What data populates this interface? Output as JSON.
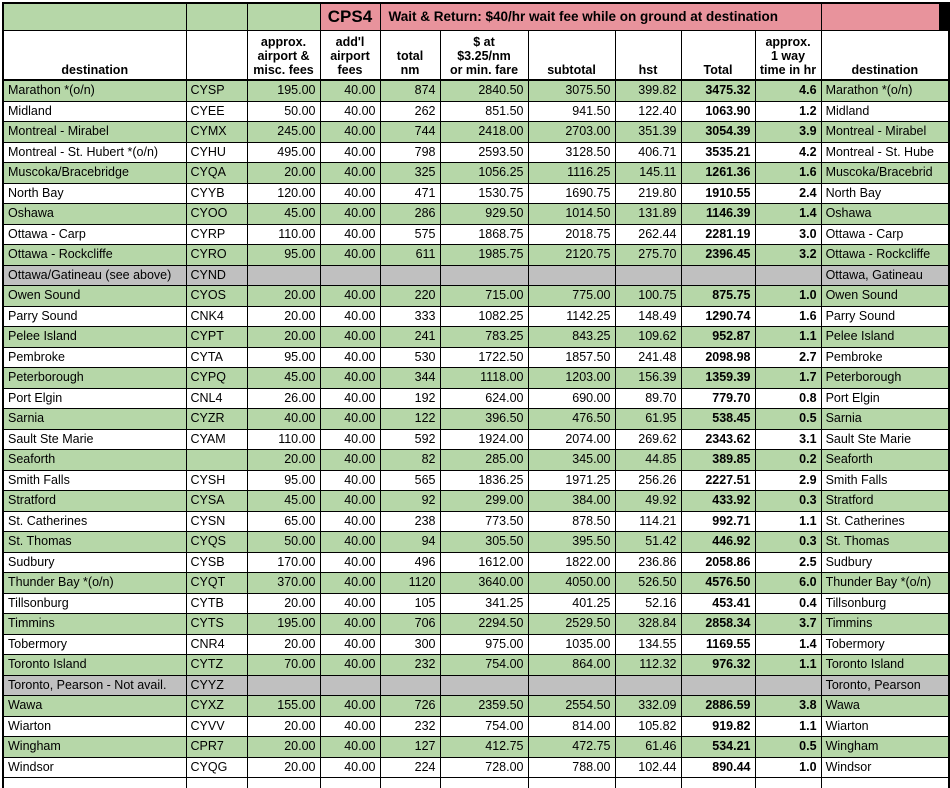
{
  "banner": {
    "code": "CPS4",
    "text": "Wait & Return: $40/hr wait fee while on ground at destination"
  },
  "headers": {
    "destination": "destination",
    "code": "",
    "fees": "approx.\nairport &\nmisc. fees",
    "addl": "add'l\nairport\nfees",
    "nm": "total\nnm",
    "fare": "$ at\n$3.25/nm\nor min. fare",
    "subtotal": "subtotal",
    "hst": "hst",
    "total": "Total",
    "time": "approx.\n1 way\ntime in hr",
    "destination_right": "destination"
  },
  "colors": {
    "green": "#b6d7a8",
    "pink": "#e8939c",
    "gray": "#c0c0c0"
  },
  "rows": [
    {
      "dest": "Marathon *(o/n)",
      "code": "CYSP",
      "fees": "195.00",
      "addl": "40.00",
      "nm": "874",
      "fare": "2840.50",
      "subtotal": "3075.50",
      "hst": "399.82",
      "total": "3475.32",
      "time": "4.6",
      "dest2": "Marathon *(o/n)",
      "shade": "g"
    },
    {
      "dest": "Midland",
      "code": "CYEE",
      "fees": "50.00",
      "addl": "40.00",
      "nm": "262",
      "fare": "851.50",
      "subtotal": "941.50",
      "hst": "122.40",
      "total": "1063.90",
      "time": "1.2",
      "dest2": "Midland",
      "shade": "w"
    },
    {
      "dest": "Montreal - Mirabel",
      "code": "CYMX",
      "fees": "245.00",
      "addl": "40.00",
      "nm": "744",
      "fare": "2418.00",
      "subtotal": "2703.00",
      "hst": "351.39",
      "total": "3054.39",
      "time": "3.9",
      "dest2": "Montreal - Mirabel",
      "shade": "g"
    },
    {
      "dest": "Montreal - St. Hubert *(o/n)",
      "code": "CYHU",
      "fees": "495.00",
      "addl": "40.00",
      "nm": "798",
      "fare": "2593.50",
      "subtotal": "3128.50",
      "hst": "406.71",
      "total": "3535.21",
      "time": "4.2",
      "dest2": "Montreal - St. Hube",
      "shade": "w"
    },
    {
      "dest": "Muscoka/Bracebridge",
      "code": "CYQA",
      "fees": "20.00",
      "addl": "40.00",
      "nm": "325",
      "fare": "1056.25",
      "subtotal": "1116.25",
      "hst": "145.11",
      "total": "1261.36",
      "time": "1.6",
      "dest2": "Muscoka/Bracebrid",
      "shade": "g"
    },
    {
      "dest": "North Bay",
      "code": "CYYB",
      "fees": "120.00",
      "addl": "40.00",
      "nm": "471",
      "fare": "1530.75",
      "subtotal": "1690.75",
      "hst": "219.80",
      "total": "1910.55",
      "time": "2.4",
      "dest2": "North Bay",
      "shade": "w"
    },
    {
      "dest": "Oshawa",
      "code": "CYOO",
      "fees": "45.00",
      "addl": "40.00",
      "nm": "286",
      "fare": "929.50",
      "subtotal": "1014.50",
      "hst": "131.89",
      "total": "1146.39",
      "time": "1.4",
      "dest2": "Oshawa",
      "shade": "g"
    },
    {
      "dest": "Ottawa - Carp",
      "code": "CYRP",
      "fees": "110.00",
      "addl": "40.00",
      "nm": "575",
      "fare": "1868.75",
      "subtotal": "2018.75",
      "hst": "262.44",
      "total": "2281.19",
      "time": "3.0",
      "dest2": "Ottawa - Carp",
      "shade": "w"
    },
    {
      "dest": "Ottawa - Rockcliffe",
      "code": "CYRO",
      "fees": "95.00",
      "addl": "40.00",
      "nm": "611",
      "fare": "1985.75",
      "subtotal": "2120.75",
      "hst": "275.70",
      "total": "2396.45",
      "time": "3.2",
      "dest2": "Ottawa - Rockcliffe",
      "shade": "g"
    },
    {
      "dest": "Ottawa/Gatineau (see above)",
      "code": "CYND",
      "fees": "",
      "addl": "",
      "nm": "",
      "fare": "",
      "subtotal": "",
      "hst": "",
      "total": "",
      "time": "",
      "dest2": "Ottawa, Gatineau",
      "shade": "x"
    },
    {
      "dest": "Owen Sound",
      "code": "CYOS",
      "fees": "20.00",
      "addl": "40.00",
      "nm": "220",
      "fare": "715.00",
      "subtotal": "775.00",
      "hst": "100.75",
      "total": "875.75",
      "time": "1.0",
      "dest2": "Owen Sound",
      "shade": "g"
    },
    {
      "dest": "Parry Sound",
      "code": "CNK4",
      "fees": "20.00",
      "addl": "40.00",
      "nm": "333",
      "fare": "1082.25",
      "subtotal": "1142.25",
      "hst": "148.49",
      "total": "1290.74",
      "time": "1.6",
      "dest2": "Parry Sound",
      "shade": "w"
    },
    {
      "dest": "Pelee Island",
      "code": "CYPT",
      "fees": "20.00",
      "addl": "40.00",
      "nm": "241",
      "fare": "783.25",
      "subtotal": "843.25",
      "hst": "109.62",
      "total": "952.87",
      "time": "1.1",
      "dest2": "Pelee Island",
      "shade": "g"
    },
    {
      "dest": "Pembroke",
      "code": "CYTA",
      "fees": "95.00",
      "addl": "40.00",
      "nm": "530",
      "fare": "1722.50",
      "subtotal": "1857.50",
      "hst": "241.48",
      "total": "2098.98",
      "time": "2.7",
      "dest2": "Pembroke",
      "shade": "w"
    },
    {
      "dest": "Peterborough",
      "code": "CYPQ",
      "fees": "45.00",
      "addl": "40.00",
      "nm": "344",
      "fare": "1118.00",
      "subtotal": "1203.00",
      "hst": "156.39",
      "total": "1359.39",
      "time": "1.7",
      "dest2": "Peterborough",
      "shade": "g"
    },
    {
      "dest": "Port Elgin",
      "code": "CNL4",
      "fees": "26.00",
      "addl": "40.00",
      "nm": "192",
      "fare": "624.00",
      "subtotal": "690.00",
      "hst": "89.70",
      "total": "779.70",
      "time": "0.8",
      "dest2": "Port Elgin",
      "shade": "w"
    },
    {
      "dest": "Sarnia",
      "code": "CYZR",
      "fees": "40.00",
      "addl": "40.00",
      "nm": "122",
      "fare": "396.50",
      "subtotal": "476.50",
      "hst": "61.95",
      "total": "538.45",
      "time": "0.5",
      "dest2": "Sarnia",
      "shade": "g"
    },
    {
      "dest": "Sault Ste Marie",
      "code": "CYAM",
      "fees": "110.00",
      "addl": "40.00",
      "nm": "592",
      "fare": "1924.00",
      "subtotal": "2074.00",
      "hst": "269.62",
      "total": "2343.62",
      "time": "3.1",
      "dest2": "Sault Ste Marie",
      "shade": "w"
    },
    {
      "dest": "Seaforth",
      "code": "",
      "fees": "20.00",
      "addl": "40.00",
      "nm": "82",
      "fare": "285.00",
      "subtotal": "345.00",
      "hst": "44.85",
      "total": "389.85",
      "time": "0.2",
      "dest2": "Seaforth",
      "shade": "g"
    },
    {
      "dest": "Smith Falls",
      "code": "CYSH",
      "fees": "95.00",
      "addl": "40.00",
      "nm": "565",
      "fare": "1836.25",
      "subtotal": "1971.25",
      "hst": "256.26",
      "total": "2227.51",
      "time": "2.9",
      "dest2": "Smith Falls",
      "shade": "w"
    },
    {
      "dest": "Stratford",
      "code": "CYSA",
      "fees": "45.00",
      "addl": "40.00",
      "nm": "92",
      "fare": "299.00",
      "subtotal": "384.00",
      "hst": "49.92",
      "total": "433.92",
      "time": "0.3",
      "dest2": "Stratford",
      "shade": "g"
    },
    {
      "dest": "St. Catherines",
      "code": "CYSN",
      "fees": "65.00",
      "addl": "40.00",
      "nm": "238",
      "fare": "773.50",
      "subtotal": "878.50",
      "hst": "114.21",
      "total": "992.71",
      "time": "1.1",
      "dest2": "St. Catherines",
      "shade": "w"
    },
    {
      "dest": "St. Thomas",
      "code": "CYQS",
      "fees": "50.00",
      "addl": "40.00",
      "nm": "94",
      "fare": "305.50",
      "subtotal": "395.50",
      "hst": "51.42",
      "total": "446.92",
      "time": "0.3",
      "dest2": "St. Thomas",
      "shade": "g"
    },
    {
      "dest": "Sudbury",
      "code": "CYSB",
      "fees": "170.00",
      "addl": "40.00",
      "nm": "496",
      "fare": "1612.00",
      "subtotal": "1822.00",
      "hst": "236.86",
      "total": "2058.86",
      "time": "2.5",
      "dest2": "Sudbury",
      "shade": "w"
    },
    {
      "dest": "Thunder Bay *(o/n)",
      "code": "CYQT",
      "fees": "370.00",
      "addl": "40.00",
      "nm": "1120",
      "fare": "3640.00",
      "subtotal": "4050.00",
      "hst": "526.50",
      "total": "4576.50",
      "time": "6.0",
      "dest2": "Thunder Bay *(o/n)",
      "shade": "g"
    },
    {
      "dest": "Tillsonburg",
      "code": "CYTB",
      "fees": "20.00",
      "addl": "40.00",
      "nm": "105",
      "fare": "341.25",
      "subtotal": "401.25",
      "hst": "52.16",
      "total": "453.41",
      "time": "0.4",
      "dest2": "Tillsonburg",
      "shade": "w"
    },
    {
      "dest": "Timmins",
      "code": "CYTS",
      "fees": "195.00",
      "addl": "40.00",
      "nm": "706",
      "fare": "2294.50",
      "subtotal": "2529.50",
      "hst": "328.84",
      "total": "2858.34",
      "time": "3.7",
      "dest2": "Timmins",
      "shade": "g"
    },
    {
      "dest": "Tobermory",
      "code": "CNR4",
      "fees": "20.00",
      "addl": "40.00",
      "nm": "300",
      "fare": "975.00",
      "subtotal": "1035.00",
      "hst": "134.55",
      "total": "1169.55",
      "time": "1.4",
      "dest2": "Tobermory",
      "shade": "w"
    },
    {
      "dest": "Toronto Island",
      "code": "CYTZ",
      "fees": "70.00",
      "addl": "40.00",
      "nm": "232",
      "fare": "754.00",
      "subtotal": "864.00",
      "hst": "112.32",
      "total": "976.32",
      "time": "1.1",
      "dest2": "Toronto Island",
      "shade": "g"
    },
    {
      "dest": "Toronto, Pearson - Not avail.",
      "code": "CYYZ",
      "fees": "",
      "addl": "",
      "nm": "",
      "fare": "",
      "subtotal": "",
      "hst": "",
      "total": "",
      "time": "",
      "dest2": "Toronto, Pearson",
      "shade": "x"
    },
    {
      "dest": "Wawa",
      "code": "CYXZ",
      "fees": "155.00",
      "addl": "40.00",
      "nm": "726",
      "fare": "2359.50",
      "subtotal": "2554.50",
      "hst": "332.09",
      "total": "2886.59",
      "time": "3.8",
      "dest2": "Wawa",
      "shade": "g"
    },
    {
      "dest": "Wiarton",
      "code": "CYVV",
      "fees": "20.00",
      "addl": "40.00",
      "nm": "232",
      "fare": "754.00",
      "subtotal": "814.00",
      "hst": "105.82",
      "total": "919.82",
      "time": "1.1",
      "dest2": "Wiarton",
      "shade": "w"
    },
    {
      "dest": "Wingham",
      "code": "CPR7",
      "fees": "20.00",
      "addl": "40.00",
      "nm": "127",
      "fare": "412.75",
      "subtotal": "472.75",
      "hst": "61.46",
      "total": "534.21",
      "time": "0.5",
      "dest2": "Wingham",
      "shade": "g"
    },
    {
      "dest": "Windsor",
      "code": "CYQG",
      "fees": "20.00",
      "addl": "40.00",
      "nm": "224",
      "fare": "728.00",
      "subtotal": "788.00",
      "hst": "102.44",
      "total": "890.44",
      "time": "1.0",
      "dest2": "Windsor",
      "shade": "w"
    }
  ]
}
